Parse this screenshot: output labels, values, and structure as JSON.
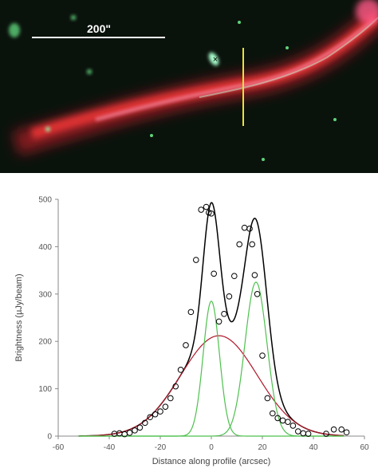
{
  "image": {
    "scale_bar_label": "200\"",
    "marker_symbol": "×",
    "colors": {
      "background": "#0a120c",
      "jet_red": "#e8232d",
      "jet_pink": "#ff9ab8",
      "source_green": "#a8ffcc",
      "slice_marker": "#e8e23a",
      "scale_bar": "#ffffff"
    }
  },
  "chart_data": {
    "type": "scatter",
    "xlabel": "Distance along profile (arcsec)",
    "ylabel": "Brightness (µJy/beam)",
    "xlim": [
      -60,
      60
    ],
    "ylim": [
      0,
      500
    ],
    "xticks": [
      -60,
      -40,
      -20,
      0,
      20,
      40,
      60
    ],
    "yticks": [
      0,
      100,
      200,
      300,
      400,
      500
    ],
    "grid": false,
    "legend": "none",
    "points": {
      "name": "",
      "marker": "open-circle",
      "color": "#000000",
      "x": [
        -38,
        -36,
        -34,
        -32,
        -30,
        -28,
        -26,
        -24,
        -22,
        -20,
        -18,
        -16,
        -14,
        -12,
        -10,
        -8,
        -6,
        -4,
        -2,
        -1,
        0,
        1,
        3,
        5,
        7,
        9,
        11,
        13,
        15,
        16,
        17,
        18,
        20,
        22,
        24,
        26,
        28,
        30,
        32,
        34,
        36,
        38,
        45,
        48,
        51,
        53
      ],
      "y": [
        5,
        6,
        4,
        7,
        12,
        18,
        28,
        40,
        46,
        52,
        62,
        80,
        105,
        140,
        192,
        262,
        372,
        478,
        484,
        472,
        470,
        343,
        242,
        258,
        295,
        338,
        405,
        440,
        438,
        405,
        340,
        300,
        170,
        80,
        48,
        38,
        33,
        30,
        22,
        10,
        6,
        5,
        5,
        14,
        14,
        8
      ],
      "_x": [
        -38,
        -36,
        -34,
        -32,
        -30,
        -28,
        -26,
        -24,
        -22,
        -20,
        -18,
        -16,
        -14,
        -12,
        -10,
        -8,
        -6,
        -4,
        -2,
        -1,
        0,
        1,
        3,
        5,
        7,
        9,
        11,
        13,
        15,
        16,
        17,
        18,
        20,
        22,
        24,
        26,
        28,
        30,
        32,
        34,
        36,
        38,
        45,
        48,
        51,
        53
      ]
    },
    "fits": [
      {
        "name": "",
        "role": "total",
        "color": "#000000"
      },
      {
        "name": "",
        "role": "broad",
        "color": "#b0182a",
        "amplitude": 212,
        "center": 3,
        "sigma": 15
      },
      {
        "name": "",
        "role": "narrow",
        "color": "#4ec04e",
        "amplitude": 285,
        "center": 0,
        "sigma": 3.2
      },
      {
        "name": "",
        "role": "narrow",
        "color": "#4ec04e",
        "amplitude": 325,
        "center": 17.5,
        "sigma": 4.3
      }
    ]
  }
}
